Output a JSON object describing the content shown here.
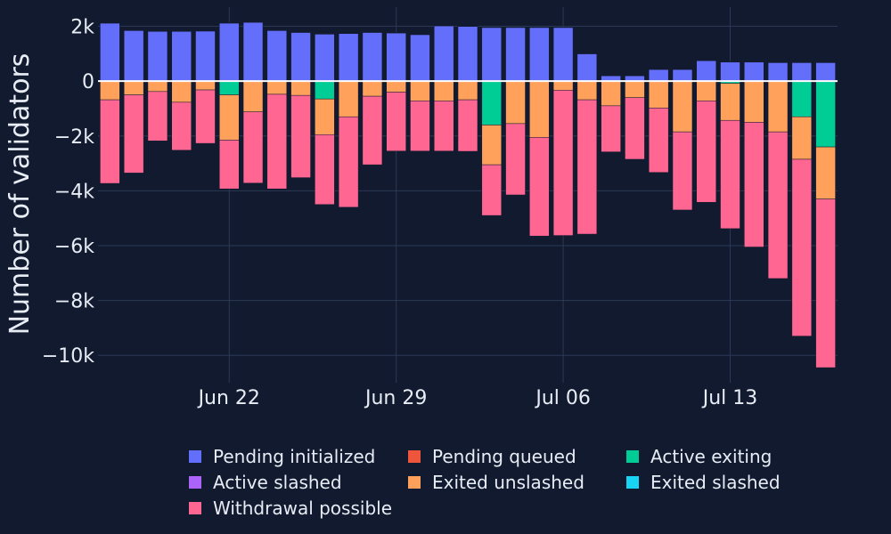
{
  "chart_data": {
    "type": "bar",
    "barmode": "relative",
    "ylabel": "Number of validators",
    "xlabel": "",
    "title": "",
    "ylim": [
      -11000,
      2700
    ],
    "y_ticks": [
      {
        "value": 2000,
        "label": "2k"
      },
      {
        "value": 0,
        "label": "0"
      },
      {
        "value": -2000,
        "label": "−2k"
      },
      {
        "value": -4000,
        "label": "−4k"
      },
      {
        "value": -6000,
        "label": "−6k"
      },
      {
        "value": -8000,
        "label": "−8k"
      },
      {
        "value": -10000,
        "label": "−10k"
      }
    ],
    "x_ticks": [
      {
        "index": 5,
        "label": "Jun 22"
      },
      {
        "index": 12,
        "label": "Jun 29"
      },
      {
        "index": 19,
        "label": "Jul 06"
      },
      {
        "index": 26,
        "label": "Jul 13"
      }
    ],
    "grid": true,
    "legend_position": "bottom",
    "series": [
      {
        "name": "Pending initialized",
        "color": "#636efa",
        "values": [
          2120,
          1850,
          1820,
          1820,
          1830,
          2120,
          2150,
          1850,
          1780,
          1720,
          1740,
          1780,
          1760,
          1700,
          2020,
          2000,
          1960,
          1960,
          1960,
          1960,
          1000,
          200,
          200,
          430,
          430,
          750,
          700,
          700,
          680,
          680,
          680
        ]
      },
      {
        "name": "Pending queued",
        "color": "#ef553b",
        "values": [
          10,
          10,
          10,
          10,
          10,
          10,
          10,
          10,
          10,
          10,
          10,
          10,
          10,
          10,
          10,
          10,
          10,
          10,
          10,
          10,
          10,
          10,
          10,
          10,
          10,
          10,
          10,
          10,
          10,
          10,
          10
        ]
      },
      {
        "name": "Active exiting",
        "color": "#00cc96",
        "values": [
          0,
          0,
          0,
          0,
          0,
          -500,
          0,
          0,
          0,
          -650,
          0,
          0,
          0,
          0,
          0,
          0,
          -1600,
          0,
          0,
          0,
          0,
          0,
          0,
          0,
          0,
          0,
          -80,
          0,
          0,
          -1300,
          -2400
        ]
      },
      {
        "name": "Active slashed",
        "color": "#ab63fa",
        "values": [
          0,
          0,
          0,
          0,
          0,
          0,
          0,
          0,
          0,
          0,
          0,
          0,
          0,
          0,
          0,
          0,
          0,
          0,
          0,
          0,
          0,
          0,
          0,
          0,
          0,
          0,
          0,
          0,
          0,
          0,
          0
        ]
      },
      {
        "name": "Exited unslashed",
        "color": "#ffa15a",
        "values": [
          -680,
          -500,
          -380,
          -770,
          -320,
          -1650,
          -1120,
          -480,
          -520,
          -1300,
          -1300,
          -550,
          -400,
          -720,
          -720,
          -680,
          -1450,
          -1550,
          -2050,
          -330,
          -680,
          -900,
          -600,
          -980,
          -1850,
          -720,
          -1350,
          -1500,
          -1850,
          -1550,
          -1900
        ]
      },
      {
        "name": "Exited slashed",
        "color": "#19d3f3",
        "values": [
          0,
          0,
          0,
          0,
          0,
          0,
          0,
          0,
          0,
          0,
          0,
          0,
          0,
          0,
          0,
          0,
          0,
          0,
          0,
          0,
          0,
          0,
          0,
          0,
          0,
          0,
          0,
          0,
          0,
          0,
          0
        ]
      },
      {
        "name": "Withdrawal possible",
        "color": "#ff6692",
        "values": [
          -3050,
          -2850,
          -1800,
          -1750,
          -1950,
          -1780,
          -2600,
          -3450,
          -3000,
          -2550,
          -3300,
          -2500,
          -2150,
          -1830,
          -1830,
          -1880,
          -1850,
          -2600,
          -3600,
          -5300,
          -4900,
          -1680,
          -2250,
          -2350,
          -2850,
          -3700,
          -3950,
          -4550,
          -5350,
          -6450,
          -6150
        ]
      }
    ]
  }
}
